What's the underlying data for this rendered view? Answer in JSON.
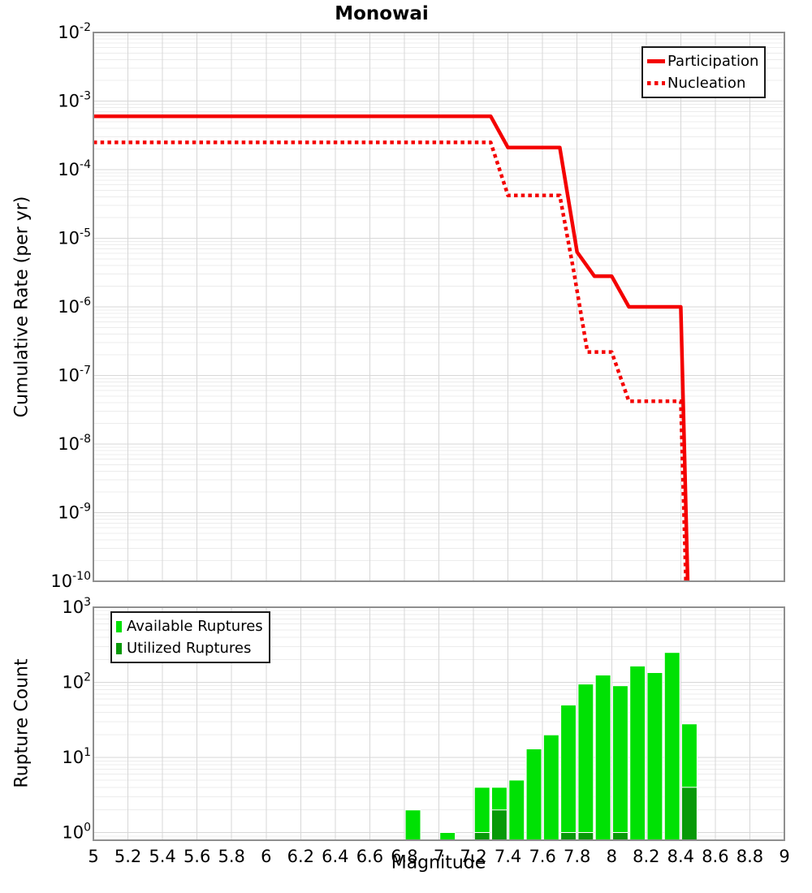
{
  "title": "Monowai",
  "xlabel": "Magnitude",
  "colors": {
    "line_red": "#f40000",
    "available_green": "#00e104",
    "utilized_green": "#089908",
    "grid_major": "#d7d7d7",
    "grid_minor": "#ececec",
    "frame": "#8f8f8f",
    "legend_border": "#1a1a1a",
    "background": "#ffffff"
  },
  "top_chart": {
    "ylabel": "Cumulative Rate (per yr)",
    "legend": [
      "Participation",
      "Nucleation"
    ]
  },
  "bottom_chart": {
    "ylabel": "Rupture Count",
    "legend": [
      "Available Ruptures",
      "Utilized Ruptures"
    ]
  },
  "x_ticks": [
    [
      5,
      "5"
    ],
    [
      5.2,
      "5.2"
    ],
    [
      5.4,
      "5.4"
    ],
    [
      5.6,
      "5.6"
    ],
    [
      5.8,
      "5.8"
    ],
    [
      6,
      "6"
    ],
    [
      6.2,
      "6.2"
    ],
    [
      6.4,
      "6.4"
    ],
    [
      6.6,
      "6.6"
    ],
    [
      6.8,
      "6.8"
    ],
    [
      7,
      "7"
    ],
    [
      7.2,
      "7.2"
    ],
    [
      7.4,
      "7.4"
    ],
    [
      7.6,
      "7.6"
    ],
    [
      7.8,
      "7.8"
    ],
    [
      8,
      "8"
    ],
    [
      8.2,
      "8.2"
    ],
    [
      8.4,
      "8.4"
    ],
    [
      8.6,
      "8.6"
    ],
    [
      8.8,
      "8.8"
    ],
    [
      9,
      "9"
    ]
  ],
  "chart_data": [
    {
      "type": "line",
      "title": "Monowai",
      "xlabel": "Magnitude",
      "ylabel": "Cumulative Rate (per yr)",
      "xlim": [
        5,
        9
      ],
      "x_tick_step": 0.2,
      "y_scale": "log",
      "ylim": [
        1e-10,
        0.01
      ],
      "y_tick_exponents": [
        -2,
        -3,
        -4,
        -5,
        -6,
        -7,
        -8,
        -9,
        -10
      ],
      "grid": true,
      "legend_position": "top-right",
      "series": [
        {
          "name": "Participation",
          "style": "solid",
          "points": [
            [
              5.0,
              0.0006
            ],
            [
              7.3,
              0.0006
            ],
            [
              7.4,
              0.00021
            ],
            [
              7.7,
              0.00021
            ],
            [
              7.8,
              6.3e-06
            ],
            [
              7.9,
              2.8e-06
            ],
            [
              8.0,
              2.8e-06
            ],
            [
              8.1,
              1e-06
            ],
            [
              8.4,
              1e-06
            ],
            [
              8.44,
              1e-10
            ]
          ]
        },
        {
          "name": "Nucleation",
          "style": "dotted",
          "points": [
            [
              5.0,
              0.00025
            ],
            [
              7.3,
              0.00025
            ],
            [
              7.4,
              4.2e-05
            ],
            [
              7.7,
              4.2e-05
            ],
            [
              7.78,
              3.4e-06
            ],
            [
              7.86,
              2.2e-07
            ],
            [
              8.0,
              2.2e-07
            ],
            [
              8.1,
              4.2e-08
            ],
            [
              8.4,
              4.2e-08
            ],
            [
              8.43,
              1e-10
            ]
          ]
        }
      ]
    },
    {
      "type": "bar",
      "xlabel": "Magnitude",
      "ylabel": "Rupture Count",
      "xlim": [
        5,
        9
      ],
      "x_tick_step": 0.2,
      "y_scale": "log",
      "ylim": [
        0.79,
        1000
      ],
      "y_tick_exponents": [
        3,
        2,
        1,
        0
      ],
      "grid": true,
      "bin_width": 0.1,
      "legend_position": "top-left",
      "series": [
        {
          "name": "Available Ruptures",
          "color_key": "available_green",
          "bins": [
            [
              6.85,
              2
            ],
            [
              7.05,
              1
            ],
            [
              7.25,
              4
            ],
            [
              7.35,
              4
            ],
            [
              7.45,
              5
            ],
            [
              7.55,
              13
            ],
            [
              7.65,
              20
            ],
            [
              7.75,
              50
            ],
            [
              7.85,
              95
            ],
            [
              7.95,
              125
            ],
            [
              8.05,
              90
            ],
            [
              8.15,
              165
            ],
            [
              8.25,
              135
            ],
            [
              8.35,
              250
            ],
            [
              8.45,
              28
            ]
          ]
        },
        {
          "name": "Utilized Ruptures",
          "color_key": "utilized_green",
          "bins": [
            [
              7.25,
              1
            ],
            [
              7.35,
              2
            ],
            [
              7.75,
              1
            ],
            [
              7.85,
              1
            ],
            [
              8.05,
              1
            ],
            [
              8.45,
              4
            ]
          ]
        }
      ]
    }
  ]
}
